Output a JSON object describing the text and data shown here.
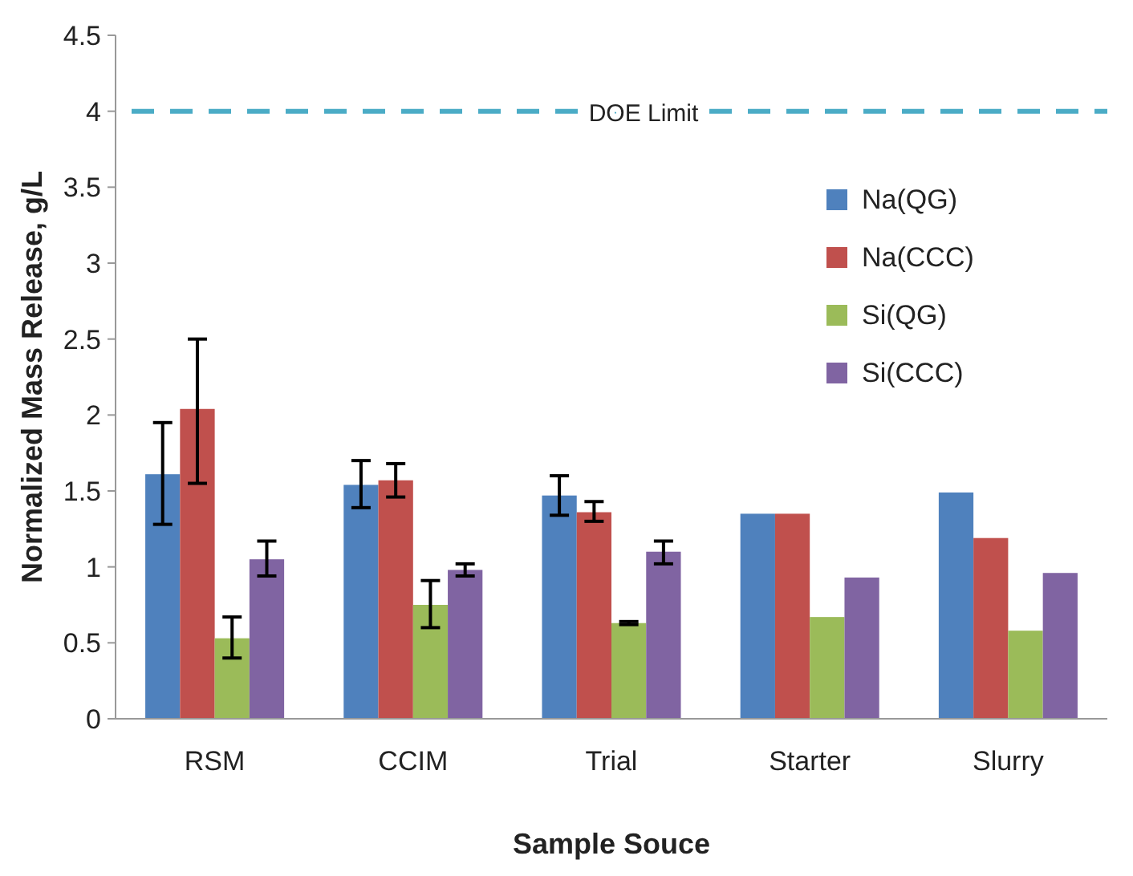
{
  "chart_data": {
    "type": "bar",
    "xlabel": "Sample Souce",
    "ylabel": "Normalized Mass Release, g/L",
    "categories": [
      "RSM",
      "CCIM",
      "Trial",
      "Starter",
      "Slurry"
    ],
    "series": [
      {
        "name": "Na(QG)",
        "color": "#4f81bd",
        "values": [
          1.61,
          1.54,
          1.47,
          1.35,
          1.49
        ],
        "errors": [
          [
            1.28,
            1.95
          ],
          [
            1.39,
            1.7
          ],
          [
            1.34,
            1.6
          ],
          null,
          null
        ]
      },
      {
        "name": "Na(CCC)",
        "color": "#c0504d",
        "values": [
          2.04,
          1.57,
          1.36,
          1.35,
          1.19
        ],
        "errors": [
          [
            1.55,
            2.5
          ],
          [
            1.46,
            1.68
          ],
          [
            1.3,
            1.43
          ],
          null,
          null
        ]
      },
      {
        "name": "Si(QG)",
        "color": "#9bbb59",
        "values": [
          0.53,
          0.75,
          0.63,
          0.67,
          0.58
        ],
        "errors": [
          [
            0.4,
            0.67
          ],
          [
            0.6,
            0.91
          ],
          [
            0.62,
            0.64
          ],
          null,
          null
        ]
      },
      {
        "name": "Si(CCC)",
        "color": "#8064a2",
        "values": [
          1.05,
          0.98,
          1.1,
          0.93,
          0.96
        ],
        "errors": [
          [
            0.94,
            1.17
          ],
          [
            0.94,
            1.02
          ],
          [
            1.02,
            1.17
          ],
          null,
          null
        ]
      }
    ],
    "ylim": [
      0,
      4.5
    ],
    "yticks": [
      0,
      0.5,
      1,
      1.5,
      2,
      2.5,
      3,
      3.5,
      4,
      4.5
    ],
    "ref_lines": [
      {
        "axis": "y",
        "value": 4,
        "label": "DOE Limit",
        "color": "#4bacc6",
        "line_style": "dashed"
      }
    ],
    "legend": "top right",
    "grid": false
  }
}
